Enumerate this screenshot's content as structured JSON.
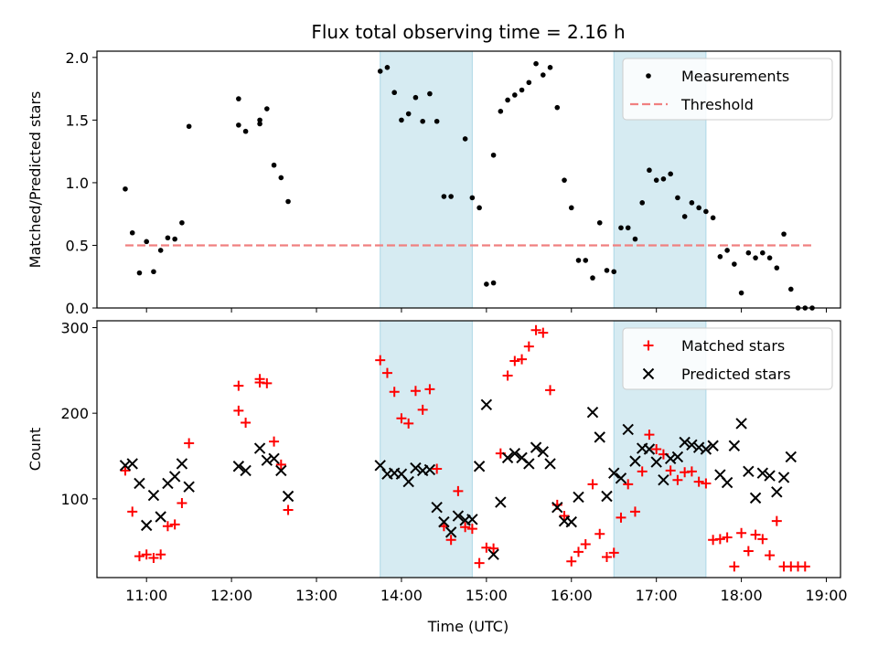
{
  "figure": {
    "title": "Flux total observing time = 2.16 h",
    "xlabel": "Time (UTC)"
  },
  "chart_data": [
    {
      "type": "scatter",
      "panel": "top",
      "ylabel": "Matched/Predicted stars",
      "xlim": [
        "10:25",
        "19:10"
      ],
      "ylim": [
        0,
        2.05
      ],
      "x_ticks": [
        "11:00",
        "12:00",
        "13:00",
        "14:00",
        "15:00",
        "16:00",
        "17:00",
        "18:00",
        "19:00"
      ],
      "y_ticks": [
        0.0,
        0.5,
        1.0,
        1.5,
        2.0
      ],
      "y_tick_labels": [
        "0.0",
        "0.5",
        "1.0",
        "1.5",
        "2.0"
      ],
      "shaded_intervals": [
        [
          "13:45",
          "14:50"
        ],
        [
          "16:30",
          "17:35"
        ]
      ],
      "legend": {
        "position": "upper right",
        "entries": [
          "Measurements",
          "Threshold"
        ]
      },
      "series": [
        {
          "name": "Measurements",
          "marker": "dot",
          "color": "#000000",
          "points": [
            [
              "10:45",
              0.95
            ],
            [
              "10:50",
              0.6
            ],
            [
              "10:55",
              0.28
            ],
            [
              "11:00",
              0.53
            ],
            [
              "11:05",
              0.29
            ],
            [
              "11:10",
              0.46
            ],
            [
              "11:15",
              0.56
            ],
            [
              "11:20",
              0.55
            ],
            [
              "11:25",
              0.68
            ],
            [
              "11:30",
              1.45
            ],
            [
              "12:05",
              1.67
            ],
            [
              "12:05",
              1.46
            ],
            [
              "12:10",
              1.41
            ],
            [
              "12:20",
              1.47
            ],
            [
              "12:20",
              1.5
            ],
            [
              "12:25",
              1.59
            ],
            [
              "12:30",
              1.14
            ],
            [
              "12:35",
              1.04
            ],
            [
              "12:40",
              0.85
            ],
            [
              "13:45",
              1.89
            ],
            [
              "13:50",
              1.92
            ],
            [
              "13:55",
              1.72
            ],
            [
              "14:00",
              1.5
            ],
            [
              "14:05",
              1.55
            ],
            [
              "14:10",
              1.68
            ],
            [
              "14:15",
              1.49
            ],
            [
              "14:20",
              1.71
            ],
            [
              "14:25",
              1.49
            ],
            [
              "14:30",
              0.89
            ],
            [
              "14:35",
              0.89
            ],
            [
              "14:45",
              1.35
            ],
            [
              "14:50",
              0.88
            ],
            [
              "14:55",
              0.8
            ],
            [
              "15:00",
              0.19
            ],
            [
              "15:05",
              0.2
            ],
            [
              "15:05",
              1.22
            ],
            [
              "15:10",
              1.57
            ],
            [
              "15:15",
              1.66
            ],
            [
              "15:20",
              1.7
            ],
            [
              "15:25",
              1.74
            ],
            [
              "15:30",
              1.8
            ],
            [
              "15:35",
              1.95
            ],
            [
              "15:40",
              1.86
            ],
            [
              "15:45",
              1.92
            ],
            [
              "15:50",
              1.6
            ],
            [
              "15:55",
              1.02
            ],
            [
              "16:00",
              0.8
            ],
            [
              "16:05",
              0.38
            ],
            [
              "16:10",
              0.38
            ],
            [
              "16:15",
              0.24
            ],
            [
              "16:20",
              0.68
            ],
            [
              "16:25",
              0.3
            ],
            [
              "16:30",
              0.29
            ],
            [
              "16:35",
              0.64
            ],
            [
              "16:40",
              0.64
            ],
            [
              "16:45",
              0.55
            ],
            [
              "16:50",
              0.84
            ],
            [
              "16:55",
              1.1
            ],
            [
              "17:00",
              1.02
            ],
            [
              "17:05",
              1.03
            ],
            [
              "17:10",
              1.07
            ],
            [
              "17:15",
              0.88
            ],
            [
              "17:20",
              0.73
            ],
            [
              "17:25",
              0.84
            ],
            [
              "17:30",
              0.8
            ],
            [
              "17:35",
              0.77
            ],
            [
              "17:40",
              0.72
            ],
            [
              "17:45",
              0.41
            ],
            [
              "17:50",
              0.46
            ],
            [
              "17:55",
              0.35
            ],
            [
              "18:00",
              0.12
            ],
            [
              "18:05",
              0.44
            ],
            [
              "18:10",
              0.4
            ],
            [
              "18:15",
              0.44
            ],
            [
              "18:20",
              0.4
            ],
            [
              "18:25",
              0.32
            ],
            [
              "18:30",
              0.59
            ],
            [
              "18:35",
              0.15
            ],
            [
              "18:40",
              0.0
            ],
            [
              "18:45",
              0.0
            ],
            [
              "18:50",
              0.0
            ]
          ]
        },
        {
          "name": "Threshold",
          "marker": "dashed-line",
          "color": "#f08080",
          "points": [
            [
              "10:45",
              0.5
            ],
            [
              "18:50",
              0.5
            ]
          ]
        }
      ]
    },
    {
      "type": "scatter",
      "panel": "bottom",
      "ylabel": "Count",
      "xlim": [
        "10:25",
        "19:10"
      ],
      "ylim": [
        8,
        308
      ],
      "x_ticks": [
        "11:00",
        "12:00",
        "13:00",
        "14:00",
        "15:00",
        "16:00",
        "17:00",
        "18:00",
        "19:00"
      ],
      "y_ticks": [
        100,
        200,
        300
      ],
      "y_tick_labels": [
        "100",
        "200",
        "300"
      ],
      "shaded_intervals": [
        [
          "13:45",
          "14:50"
        ],
        [
          "16:30",
          "17:35"
        ]
      ],
      "legend": {
        "position": "upper right",
        "entries": [
          "Matched stars",
          "Predicted stars"
        ]
      },
      "series": [
        {
          "name": "Matched stars",
          "marker": "plus",
          "color": "#ff0000",
          "points": [
            [
              "10:45",
              133
            ],
            [
              "10:50",
              85
            ],
            [
              "10:55",
              33
            ],
            [
              "11:00",
              35
            ],
            [
              "11:05",
              31
            ],
            [
              "11:10",
              35
            ],
            [
              "11:15",
              68
            ],
            [
              "11:20",
              70
            ],
            [
              "11:25",
              95
            ],
            [
              "11:30",
              165
            ],
            [
              "12:05",
              232
            ],
            [
              "12:05",
              203
            ],
            [
              "12:10",
              189
            ],
            [
              "12:20",
              240
            ],
            [
              "12:20",
              236
            ],
            [
              "12:25",
              235
            ],
            [
              "12:30",
              167
            ],
            [
              "12:35",
              140
            ],
            [
              "12:40",
              87
            ],
            [
              "13:45",
              262
            ],
            [
              "13:50",
              247
            ],
            [
              "13:55",
              225
            ],
            [
              "14:00",
              194
            ],
            [
              "14:05",
              188
            ],
            [
              "14:10",
              226
            ],
            [
              "14:15",
              204
            ],
            [
              "14:20",
              228
            ],
            [
              "14:25",
              135
            ],
            [
              "14:30",
              68
            ],
            [
              "14:35",
              52
            ],
            [
              "14:40",
              109
            ],
            [
              "14:45",
              67
            ],
            [
              "14:50",
              65
            ],
            [
              "14:55",
              25
            ],
            [
              "15:00",
              43
            ],
            [
              "15:05",
              42
            ],
            [
              "15:10",
              153
            ],
            [
              "15:15",
              244
            ],
            [
              "15:20",
              261
            ],
            [
              "15:25",
              263
            ],
            [
              "15:30",
              278
            ],
            [
              "15:35",
              297
            ],
            [
              "15:40",
              294
            ],
            [
              "15:45",
              227
            ],
            [
              "15:50",
              93
            ],
            [
              "15:55",
              80
            ],
            [
              "16:00",
              27
            ],
            [
              "16:05",
              38
            ],
            [
              "16:10",
              47
            ],
            [
              "16:15",
              117
            ],
            [
              "16:20",
              59
            ],
            [
              "16:25",
              32
            ],
            [
              "16:30",
              37
            ],
            [
              "16:35",
              78
            ],
            [
              "16:40",
              117
            ],
            [
              "16:45",
              85
            ],
            [
              "16:50",
              132
            ],
            [
              "16:55",
              175
            ],
            [
              "17:00",
              158
            ],
            [
              "17:05",
              152
            ],
            [
              "17:10",
              133
            ],
            [
              "17:15",
              122
            ],
            [
              "17:20",
              131
            ],
            [
              "17:25",
              132
            ],
            [
              "17:30",
              120
            ],
            [
              "17:35",
              118
            ],
            [
              "17:40",
              52
            ],
            [
              "17:45",
              53
            ],
            [
              "17:50",
              55
            ],
            [
              "17:55",
              21
            ],
            [
              "18:00",
              60
            ],
            [
              "18:05",
              39
            ],
            [
              "18:10",
              58
            ],
            [
              "18:15",
              53
            ],
            [
              "18:20",
              34
            ],
            [
              "18:25",
              74
            ],
            [
              "18:30",
              21
            ],
            [
              "18:35",
              21
            ],
            [
              "18:40",
              21
            ],
            [
              "18:45",
              21
            ]
          ]
        },
        {
          "name": "Predicted stars",
          "marker": "x",
          "color": "#000000",
          "points": [
            [
              "10:45",
              139
            ],
            [
              "10:50",
              141
            ],
            [
              "10:55",
              118
            ],
            [
              "11:00",
              69
            ],
            [
              "11:05",
              104
            ],
            [
              "11:10",
              79
            ],
            [
              "11:15",
              118
            ],
            [
              "11:20",
              126
            ],
            [
              "11:25",
              141
            ],
            [
              "11:30",
              114
            ],
            [
              "12:05",
              138
            ],
            [
              "12:10",
              133
            ],
            [
              "12:20",
              159
            ],
            [
              "12:25",
              145
            ],
            [
              "12:30",
              147
            ],
            [
              "12:35",
              133
            ],
            [
              "12:40",
              103
            ],
            [
              "13:45",
              139
            ],
            [
              "13:50",
              129
            ],
            [
              "13:55",
              130
            ],
            [
              "14:00",
              129
            ],
            [
              "14:05",
              120
            ],
            [
              "14:10",
              136
            ],
            [
              "14:15",
              133
            ],
            [
              "14:20",
              134
            ],
            [
              "14:25",
              90
            ],
            [
              "14:30",
              73
            ],
            [
              "14:35",
              61
            ],
            [
              "14:40",
              80
            ],
            [
              "14:45",
              75
            ],
            [
              "14:50",
              76
            ],
            [
              "14:55",
              138
            ],
            [
              "15:00",
              210
            ],
            [
              "15:05",
              35
            ],
            [
              "15:10",
              96
            ],
            [
              "15:15",
              148
            ],
            [
              "15:20",
              153
            ],
            [
              "15:25",
              148
            ],
            [
              "15:30",
              141
            ],
            [
              "15:35",
              160
            ],
            [
              "15:40",
              155
            ],
            [
              "15:45",
              141
            ],
            [
              "15:50",
              90
            ],
            [
              "15:55",
              74
            ],
            [
              "16:00",
              73
            ],
            [
              "16:05",
              102
            ],
            [
              "16:15",
              201
            ],
            [
              "16:20",
              172
            ],
            [
              "16:25",
              103
            ],
            [
              "16:30",
              130
            ],
            [
              "16:35",
              124
            ],
            [
              "16:40",
              181
            ],
            [
              "16:45",
              144
            ],
            [
              "16:50",
              159
            ],
            [
              "16:55",
              158
            ],
            [
              "17:00",
              143
            ],
            [
              "17:05",
              122
            ],
            [
              "17:10",
              147
            ],
            [
              "17:15",
              149
            ],
            [
              "17:20",
              166
            ],
            [
              "17:25",
              163
            ],
            [
              "17:30",
              160
            ],
            [
              "17:35",
              158
            ],
            [
              "17:40",
              162
            ],
            [
              "17:45",
              128
            ],
            [
              "17:50",
              119
            ],
            [
              "17:55",
              162
            ],
            [
              "18:00",
              188
            ],
            [
              "18:05",
              132
            ],
            [
              "18:10",
              101
            ],
            [
              "18:15",
              130
            ],
            [
              "18:20",
              127
            ],
            [
              "18:25",
              108
            ],
            [
              "18:30",
              125
            ],
            [
              "18:35",
              149
            ]
          ]
        }
      ]
    }
  ]
}
